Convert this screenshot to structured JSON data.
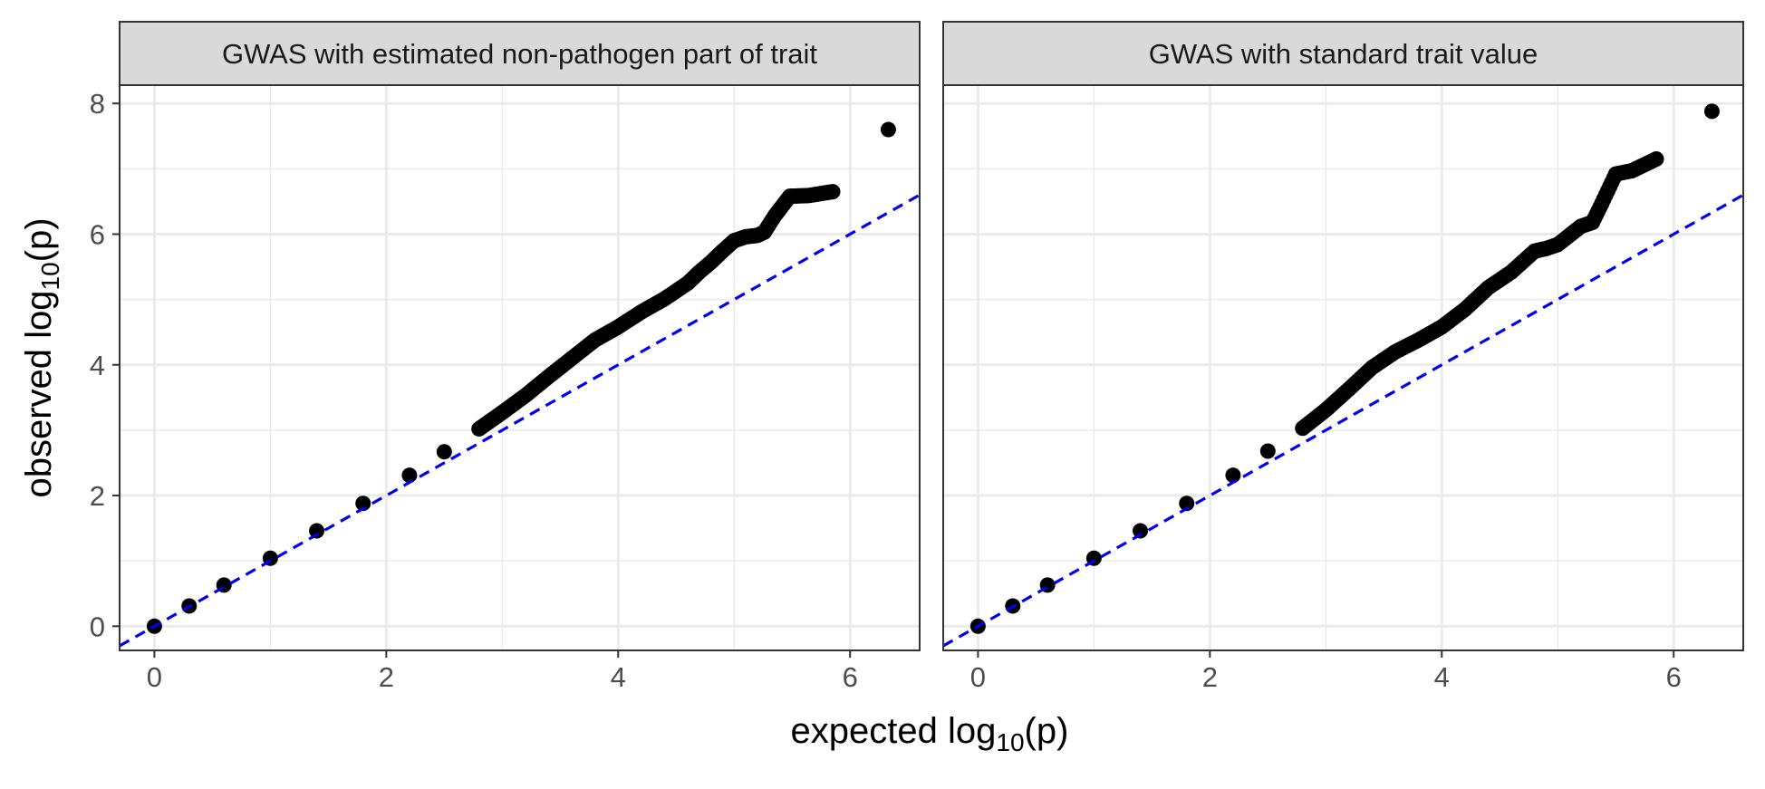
{
  "colors": {
    "points": "#000000",
    "reference_line": "#0000ee",
    "strip_fill": "#d9d9d9",
    "grid": "#ebebeb",
    "panel_border": "#333333",
    "tick_text": "#4d4d4d",
    "axis_title": "#000000"
  },
  "axes": {
    "xlabel": {
      "prefix": "expected log",
      "sub": "10",
      "suffix": "(p)"
    },
    "ylabel": {
      "prefix": "observed log",
      "sub": "10",
      "suffix": "(p)"
    }
  },
  "chart_data": {
    "type": "scatter",
    "xlim": [
      -0.3,
      6.6
    ],
    "ylim": [
      -0.37,
      8.28
    ],
    "x_ticks": [
      0,
      2,
      4,
      6
    ],
    "y_ticks": [
      0,
      2,
      4,
      6,
      8
    ],
    "x_tick_labels": [
      "0",
      "2",
      "4",
      "6"
    ],
    "y_tick_labels": [
      "0",
      "2",
      "4",
      "6",
      "8"
    ],
    "grid": true,
    "reference_line": {
      "slope": 1,
      "intercept": 0,
      "style": "dashed"
    },
    "panels": [
      {
        "title": "GWAS with estimated non-pathogen part of trait",
        "series": {
          "x": [
            0,
            0.3,
            0.6,
            1.0,
            1.4,
            1.8,
            2.2,
            2.5,
            2.8,
            3.0,
            3.2,
            3.4,
            3.6,
            3.8,
            4.0,
            4.2,
            4.4,
            4.6,
            4.7,
            4.8,
            4.9,
            5.0,
            5.1,
            5.2,
            5.26,
            5.35,
            5.48,
            5.64,
            5.85,
            6.33
          ],
          "y": [
            0,
            0.31,
            0.63,
            1.04,
            1.46,
            1.88,
            2.31,
            2.67,
            3.02,
            3.27,
            3.53,
            3.82,
            4.1,
            4.38,
            4.58,
            4.81,
            5.01,
            5.25,
            5.42,
            5.57,
            5.74,
            5.9,
            5.96,
            5.98,
            6.03,
            6.28,
            6.58,
            6.59,
            6.65,
            7.6
          ]
        }
      },
      {
        "title": "GWAS with standard trait value",
        "series": {
          "x": [
            0,
            0.3,
            0.6,
            1.0,
            1.4,
            1.8,
            2.2,
            2.5,
            2.8,
            3.0,
            3.2,
            3.4,
            3.6,
            3.8,
            4.0,
            4.2,
            4.4,
            4.6,
            4.7,
            4.8,
            4.9,
            5.0,
            5.1,
            5.2,
            5.3,
            5.38,
            5.5,
            5.64,
            5.85,
            6.33
          ],
          "y": [
            0,
            0.31,
            0.63,
            1.04,
            1.46,
            1.88,
            2.31,
            2.68,
            3.03,
            3.31,
            3.63,
            3.96,
            4.2,
            4.38,
            4.58,
            4.85,
            5.18,
            5.42,
            5.58,
            5.74,
            5.78,
            5.84,
            5.98,
            6.12,
            6.18,
            6.47,
            6.92,
            6.97,
            7.15,
            7.88
          ]
        }
      }
    ]
  }
}
